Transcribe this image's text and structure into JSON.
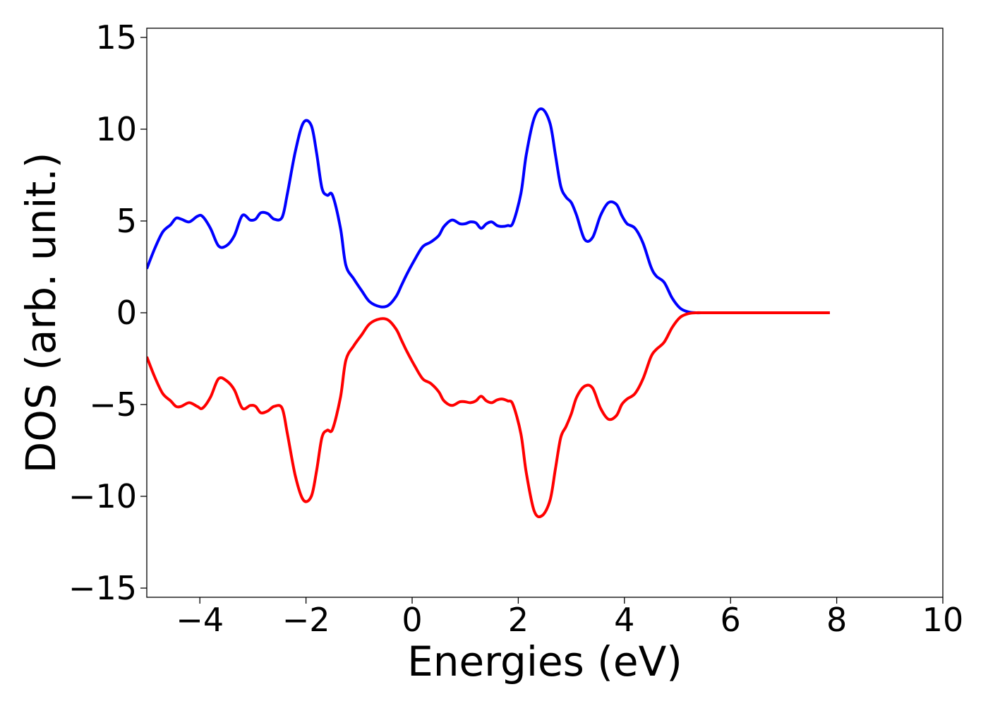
{
  "chart_data": {
    "type": "line",
    "title": "",
    "xlabel": "Energies (eV)",
    "ylabel": "DOS (arb. unit.)",
    "xlim": [
      -5.0,
      10.0
    ],
    "ylim": [
      -15.5,
      15.5
    ],
    "xticks": [
      -4,
      -2,
      0,
      2,
      4,
      6,
      8,
      10
    ],
    "yticks": [
      -15,
      -10,
      -5,
      0,
      5,
      10,
      15
    ],
    "xtick_labels": [
      "−4",
      "−2",
      "0",
      "2",
      "4",
      "6",
      "8",
      "10"
    ],
    "ytick_labels": [
      "−15",
      "−10",
      "−5",
      "0",
      "5",
      "10",
      "15"
    ],
    "grid": false,
    "legend": "none",
    "series": [
      {
        "color": "#0000ff",
        "x": [
          -5.0,
          -4.85,
          -4.7,
          -4.55,
          -4.45,
          -4.35,
          -4.2,
          -4.05,
          -3.95,
          -3.8,
          -3.65,
          -3.5,
          -3.35,
          -3.2,
          -3.05,
          -2.95,
          -2.85,
          -2.72,
          -2.6,
          -2.45,
          -2.35,
          -2.2,
          -2.05,
          -1.9,
          -1.8,
          -1.7,
          -1.6,
          -1.5,
          -1.35,
          -1.25,
          -1.1,
          -0.95,
          -0.8,
          -0.6,
          -0.45,
          -0.3,
          -0.2,
          -0.1,
          0.05,
          0.2,
          0.35,
          0.5,
          0.6,
          0.75,
          0.9,
          1.0,
          1.1,
          1.2,
          1.3,
          1.4,
          1.5,
          1.6,
          1.7,
          1.8,
          1.9,
          2.05,
          2.15,
          2.3,
          2.45,
          2.6,
          2.7,
          2.8,
          2.9,
          3.0,
          3.1,
          3.25,
          3.4,
          3.55,
          3.7,
          3.85,
          3.95,
          4.05,
          4.2,
          4.35,
          4.5,
          4.6,
          4.75,
          4.9,
          5.05,
          5.2,
          5.35,
          5.5,
          5.7,
          6.0,
          6.5,
          7.0,
          7.5,
          7.87
        ],
        "values": [
          2.4,
          3.5,
          4.4,
          4.8,
          5.15,
          5.1,
          4.95,
          5.25,
          5.25,
          4.6,
          3.65,
          3.65,
          4.2,
          5.3,
          5.05,
          5.1,
          5.45,
          5.4,
          5.1,
          5.2,
          6.5,
          8.8,
          10.35,
          10.2,
          8.7,
          6.8,
          6.4,
          6.4,
          4.6,
          2.6,
          1.85,
          1.2,
          0.6,
          0.33,
          0.4,
          0.9,
          1.5,
          2.1,
          2.9,
          3.6,
          3.85,
          4.2,
          4.7,
          5.05,
          4.85,
          4.85,
          4.95,
          4.9,
          4.6,
          4.85,
          4.95,
          4.75,
          4.7,
          4.75,
          4.9,
          6.5,
          8.6,
          10.6,
          11.1,
          10.3,
          8.6,
          6.9,
          6.3,
          6.0,
          5.3,
          4.0,
          4.1,
          5.3,
          6.0,
          5.9,
          5.3,
          4.85,
          4.6,
          3.8,
          2.5,
          2.0,
          1.65,
          0.8,
          0.25,
          0.05,
          0.0,
          0.0,
          0.0,
          0.0,
          0.0,
          0.0,
          0.0,
          0.0
        ]
      },
      {
        "color": "#ff0000",
        "x": [
          -5.0,
          -4.85,
          -4.7,
          -4.55,
          -4.45,
          -4.35,
          -4.2,
          -4.05,
          -3.95,
          -3.8,
          -3.65,
          -3.5,
          -3.35,
          -3.2,
          -3.05,
          -2.95,
          -2.85,
          -2.72,
          -2.6,
          -2.45,
          -2.35,
          -2.2,
          -2.05,
          -1.9,
          -1.8,
          -1.7,
          -1.6,
          -1.5,
          -1.35,
          -1.25,
          -1.1,
          -0.95,
          -0.8,
          -0.6,
          -0.45,
          -0.3,
          -0.2,
          -0.1,
          0.05,
          0.2,
          0.35,
          0.5,
          0.6,
          0.75,
          0.9,
          1.0,
          1.1,
          1.2,
          1.3,
          1.4,
          1.5,
          1.6,
          1.7,
          1.8,
          1.9,
          2.05,
          2.15,
          2.3,
          2.45,
          2.6,
          2.7,
          2.8,
          2.9,
          3.0,
          3.1,
          3.25,
          3.4,
          3.55,
          3.7,
          3.85,
          3.95,
          4.05,
          4.2,
          4.35,
          4.5,
          4.6,
          4.75,
          4.9,
          5.05,
          5.2,
          5.35,
          5.5,
          5.7,
          6.0,
          6.5,
          7.0,
          7.5,
          7.87
        ],
        "values": [
          -2.4,
          -3.5,
          -4.4,
          -4.8,
          -5.1,
          -5.1,
          -4.9,
          -5.1,
          -5.2,
          -4.6,
          -3.6,
          -3.7,
          -4.2,
          -5.2,
          -5.05,
          -5.1,
          -5.45,
          -5.35,
          -5.1,
          -5.2,
          -6.6,
          -8.9,
          -10.2,
          -10.0,
          -8.6,
          -6.8,
          -6.4,
          -6.35,
          -4.6,
          -2.6,
          -1.8,
          -1.2,
          -0.6,
          -0.33,
          -0.4,
          -0.9,
          -1.5,
          -2.1,
          -2.9,
          -3.6,
          -3.85,
          -4.3,
          -4.8,
          -5.05,
          -4.85,
          -4.85,
          -4.9,
          -4.8,
          -4.55,
          -4.8,
          -4.9,
          -4.75,
          -4.7,
          -4.8,
          -5.0,
          -6.6,
          -8.7,
          -10.8,
          -11.05,
          -10.2,
          -8.5,
          -6.8,
          -6.2,
          -5.5,
          -4.6,
          -4.0,
          -4.1,
          -5.2,
          -5.8,
          -5.6,
          -5.0,
          -4.7,
          -4.4,
          -3.6,
          -2.4,
          -2.0,
          -1.6,
          -0.8,
          -0.25,
          -0.05,
          0.0,
          0.0,
          0.0,
          0.0,
          0.0,
          0.0,
          0.0,
          0.0
        ]
      }
    ]
  }
}
